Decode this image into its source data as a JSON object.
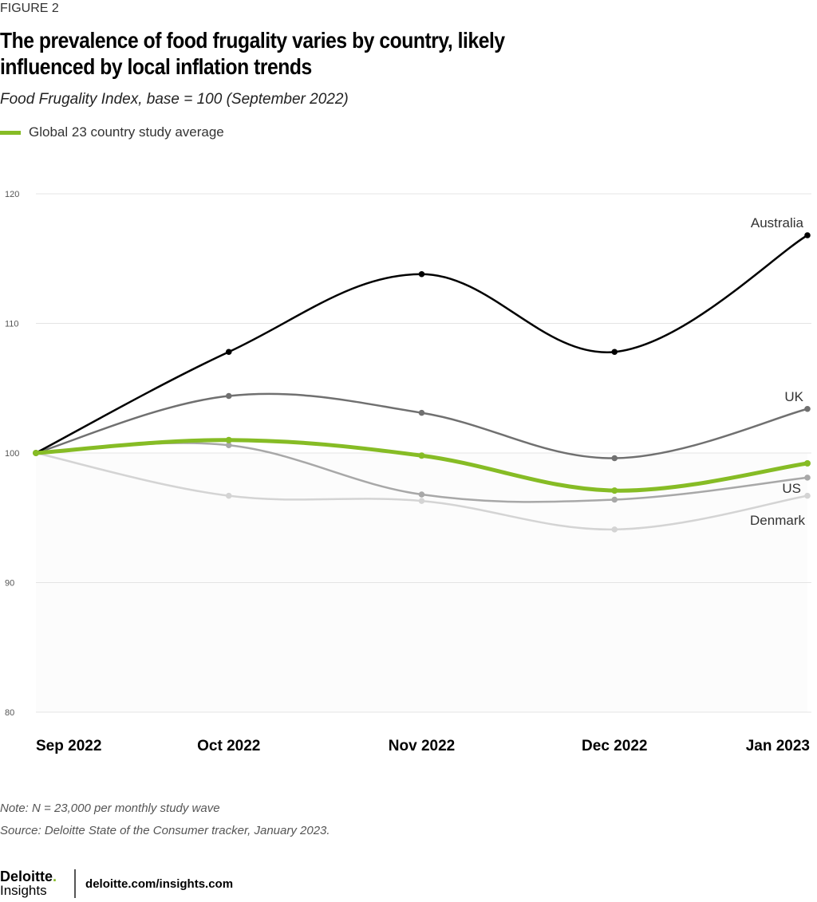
{
  "figure_label": "FIGURE 2",
  "title": "The prevalence of food frugality varies by country, likely influenced by local inflation trends",
  "subtitle": "Food Frugality Index, base = 100 (September 2022)",
  "legend_label": "Global 23 country study average",
  "note": "Note: N = 23,000 per monthly study wave",
  "source": "Source: Deloitte State of the Consumer tracker, January 2023.",
  "footer": {
    "logo_top": "Deloitte",
    "logo_bottom": "Insights",
    "url": "deloitte.com/insights.com"
  },
  "chart_data": {
    "type": "line",
    "categories": [
      "Sep 2022",
      "Oct 2022",
      "Nov 2022",
      "Dec 2022",
      "Jan 2023"
    ],
    "ylim": [
      80,
      120
    ],
    "yticks": [
      "80",
      "90",
      "100",
      "110",
      "120"
    ],
    "grid": true,
    "legend_placement": "top-left",
    "series": [
      {
        "name": "Denmark",
        "values": [
          100,
          96.7,
          96.3,
          94.1,
          96.7
        ],
        "color": "#d4d4d4",
        "width": 2.5
      },
      {
        "name": "US",
        "values": [
          100,
          100.6,
          96.8,
          96.4,
          98.1
        ],
        "color": "#a8a8a8",
        "width": 2.5
      },
      {
        "name": "UK",
        "values": [
          100,
          104.4,
          103.1,
          99.6,
          103.4
        ],
        "color": "#707070",
        "width": 2.5
      },
      {
        "name": "Australia",
        "values": [
          100,
          107.8,
          113.8,
          107.8,
          116.8
        ],
        "color": "#000000",
        "width": 2.5
      },
      {
        "name": "Global 23 country study average",
        "values": [
          100,
          101.0,
          99.8,
          97.1,
          99.2
        ],
        "color": "#86bc25",
        "width": 5
      }
    ]
  }
}
